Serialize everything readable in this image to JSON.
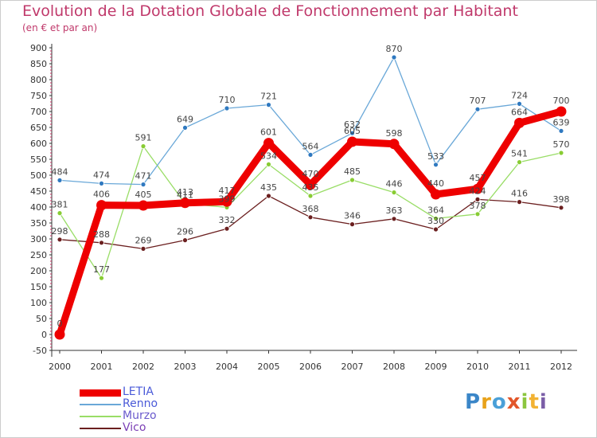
{
  "header": {
    "title": "Evolution de la Dotation Globale de Fonctionnement par Habitant",
    "subtitle": "(en € et par an)"
  },
  "logo": {
    "text": "Proxiti",
    "letters": [
      "P",
      "r",
      "o",
      "x",
      "i",
      "t",
      "i"
    ]
  },
  "chart_data": {
    "type": "line",
    "x": [
      "2000",
      "2001",
      "2002",
      "2003",
      "2004",
      "2005",
      "2006",
      "2007",
      "2008",
      "2009",
      "2010",
      "2011",
      "2012"
    ],
    "ylim": [
      -50,
      900
    ],
    "yticks": [
      -50,
      0,
      50,
      100,
      150,
      200,
      250,
      300,
      350,
      400,
      450,
      500,
      550,
      600,
      650,
      700,
      750,
      800,
      850,
      900
    ],
    "grid": false,
    "legend": "bottom-left",
    "series": [
      {
        "name": "Vico",
        "color": "#6b1f1f",
        "values": [
          298,
          288,
          269,
          296,
          332,
          435,
          368,
          346,
          363,
          330,
          424,
          416,
          398
        ]
      },
      {
        "name": "Murzo",
        "color": "#99dd66",
        "values": [
          381,
          177,
          591,
          411,
          399,
          534,
          435,
          485,
          446,
          364,
          378,
          541,
          570
        ]
      },
      {
        "name": "Renno",
        "color": "#6aa8d8",
        "values": [
          484,
          474,
          471,
          649,
          710,
          721,
          564,
          632,
          870,
          533,
          707,
          724,
          639
        ]
      },
      {
        "name": "LETIA",
        "color": "#ee0000",
        "values": [
          0,
          406,
          405,
          413,
          417,
          601,
          470,
          605,
          598,
          440,
          457,
          664,
          700
        ]
      }
    ]
  }
}
